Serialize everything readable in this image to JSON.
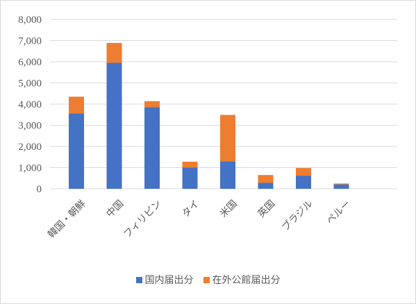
{
  "chart_data": {
    "type": "bar",
    "stacked": true,
    "categories": [
      "韓国・朝鮮",
      "中国",
      "フィリピン",
      "タイ",
      "米国",
      "英国",
      "ブラジル",
      "ペルー"
    ],
    "series": [
      {
        "name": "国内届出分",
        "color": "#4472c4",
        "values": [
          3560,
          5950,
          3850,
          1000,
          1300,
          280,
          620,
          210
        ]
      },
      {
        "name": "在外公館届出分",
        "color": "#ed7d31",
        "values": [
          790,
          940,
          290,
          280,
          2190,
          370,
          360,
          40
        ]
      }
    ],
    "ylim": [
      0,
      8000
    ],
    "yticks": [
      "0",
      "1,000",
      "2,000",
      "3,000",
      "4,000",
      "5,000",
      "6,000",
      "7,000",
      "8,000"
    ],
    "grid": true,
    "legend_position": "bottom",
    "title": "",
    "xlabel": "",
    "ylabel": ""
  }
}
